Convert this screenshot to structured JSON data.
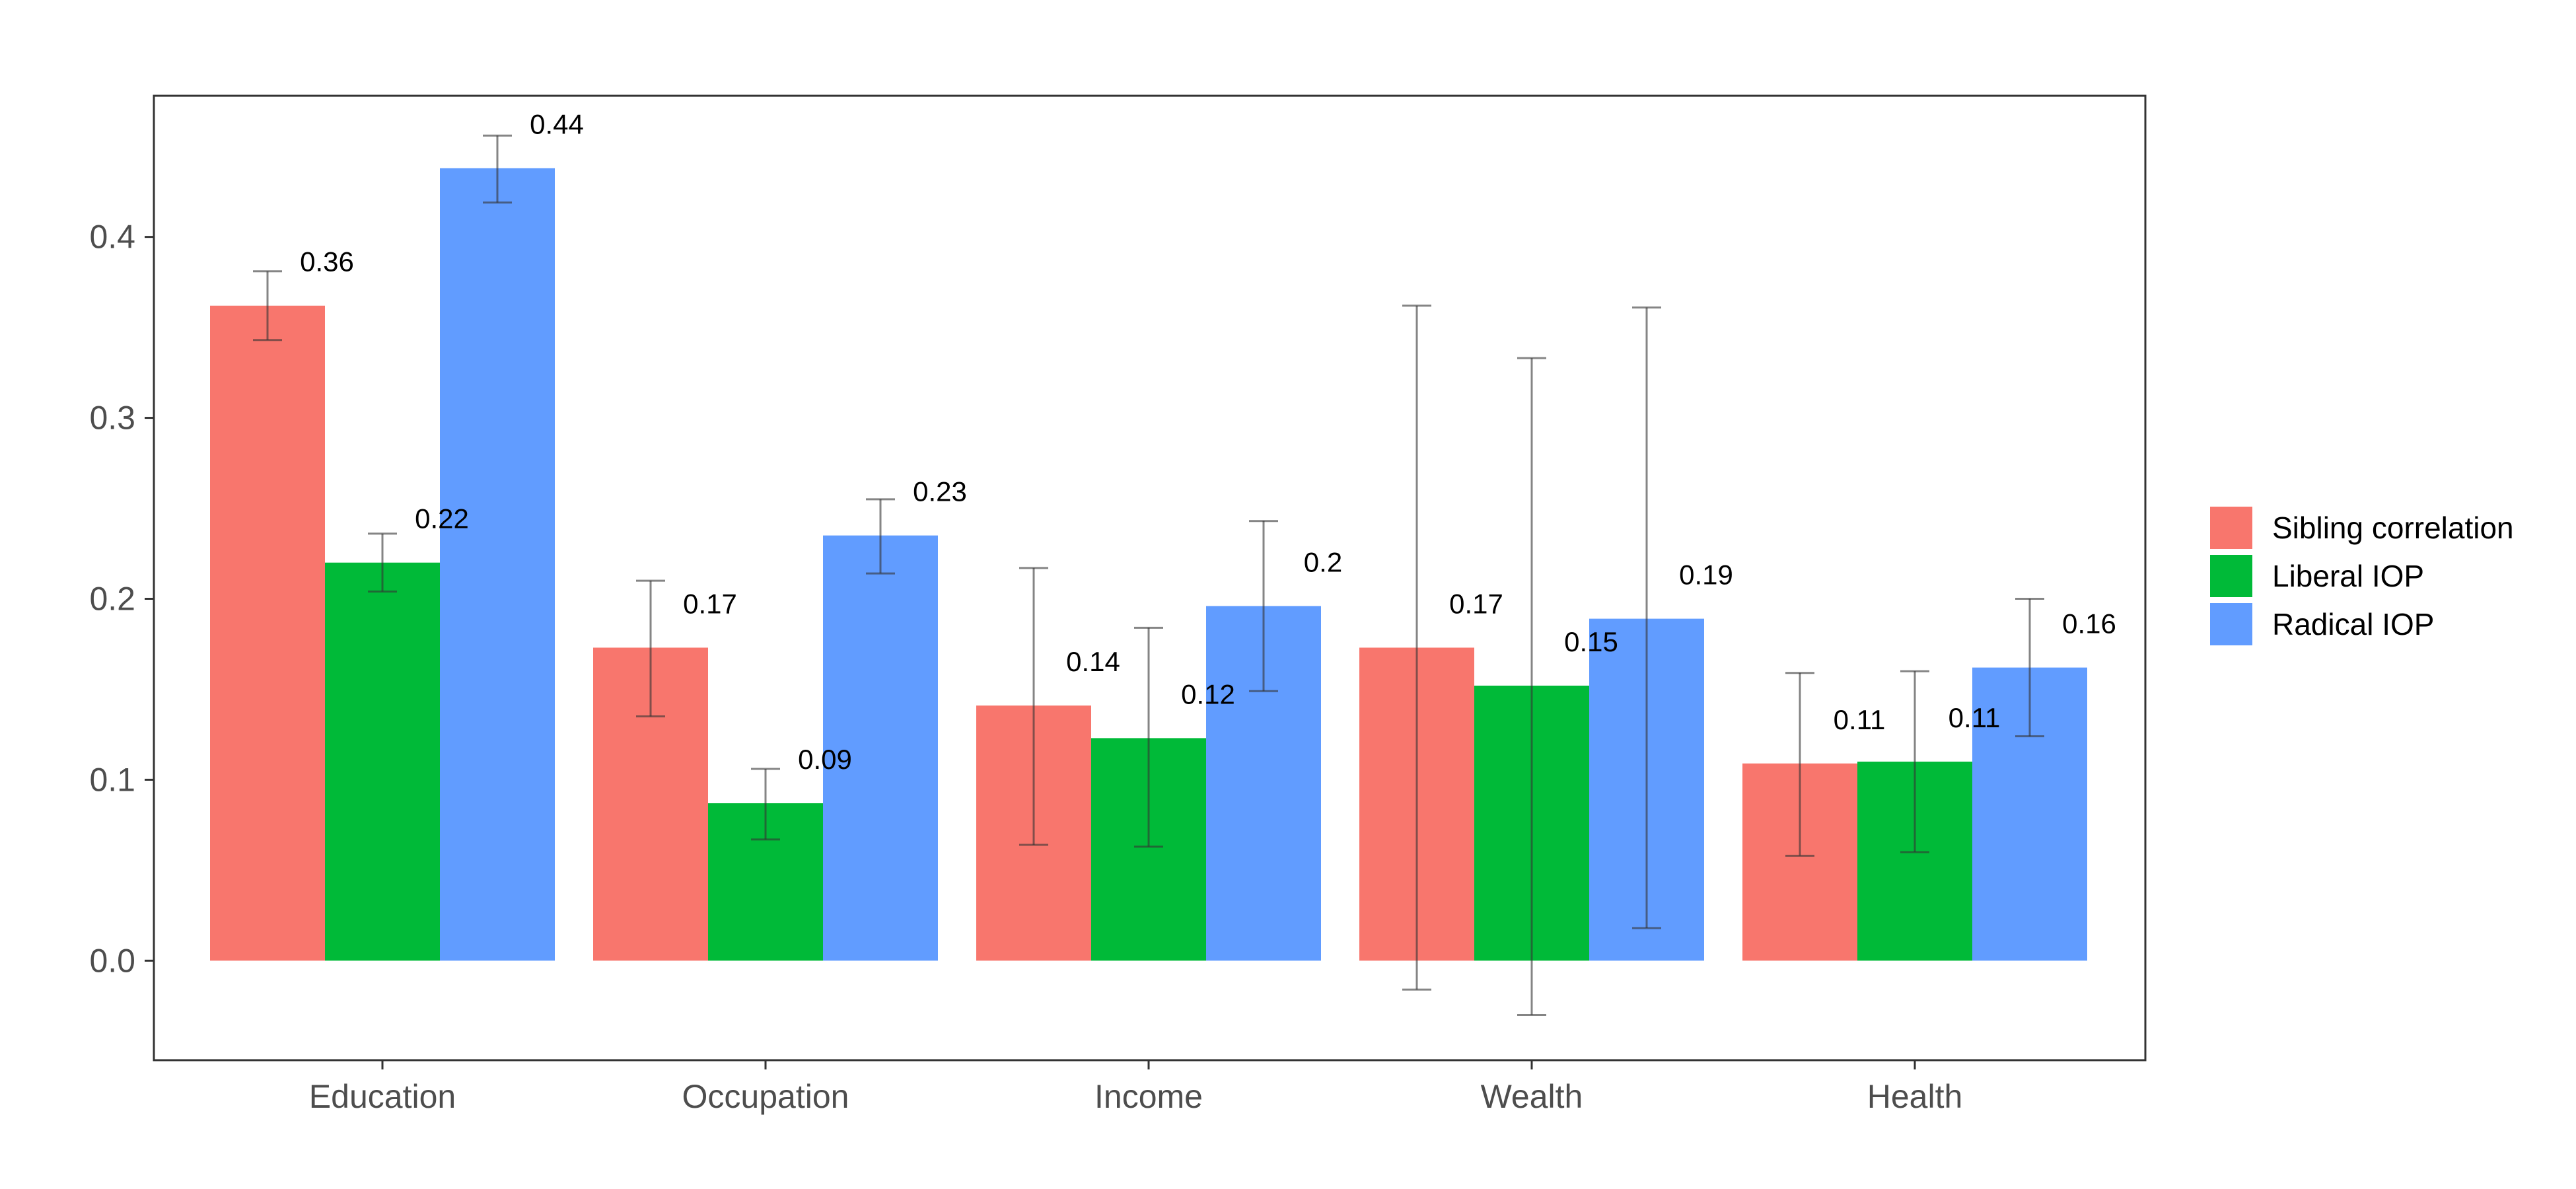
{
  "chart_data": {
    "type": "bar",
    "categories": [
      "Education",
      "Occupation",
      "Income",
      "Wealth",
      "Health"
    ],
    "series": [
      {
        "name": "Sibling correlation",
        "color": "#F8766D",
        "values": [
          0.362,
          0.173,
          0.141,
          0.173,
          0.109
        ],
        "error_low": [
          0.343,
          0.135,
          0.064,
          -0.016,
          0.058
        ],
        "error_high": [
          0.381,
          0.21,
          0.217,
          0.362,
          0.159
        ],
        "labels": [
          "0.36",
          "0.17",
          "0.14",
          "0.17",
          "0.11"
        ]
      },
      {
        "name": "Liberal IOP",
        "color": "#00BA38",
        "values": [
          0.22,
          0.087,
          0.123,
          0.152,
          0.11
        ],
        "error_low": [
          0.204,
          0.067,
          0.063,
          -0.03,
          0.06
        ],
        "error_high": [
          0.236,
          0.106,
          0.184,
          0.333,
          0.16
        ],
        "labels": [
          "0.22",
          "0.09",
          "0.12",
          "0.15",
          "0.11"
        ]
      },
      {
        "name": "Radical IOP",
        "color": "#619CFF",
        "values": [
          0.438,
          0.235,
          0.196,
          0.189,
          0.162
        ],
        "error_low": [
          0.419,
          0.214,
          0.149,
          0.018,
          0.124
        ],
        "error_high": [
          0.456,
          0.255,
          0.243,
          0.361,
          0.2
        ],
        "labels": [
          "0.44",
          "0.23",
          "0.2",
          "0.19",
          "0.16"
        ]
      }
    ],
    "title": "",
    "xlabel": "",
    "ylabel": "",
    "ylim": [
      -0.055,
      0.478
    ],
    "yticks": [
      0.0,
      0.1,
      0.2,
      0.3,
      0.4
    ],
    "ytick_labels": [
      "0.0",
      "0.1",
      "0.2",
      "0.3",
      "0.4"
    ],
    "grid": false,
    "legend_position": "right"
  }
}
